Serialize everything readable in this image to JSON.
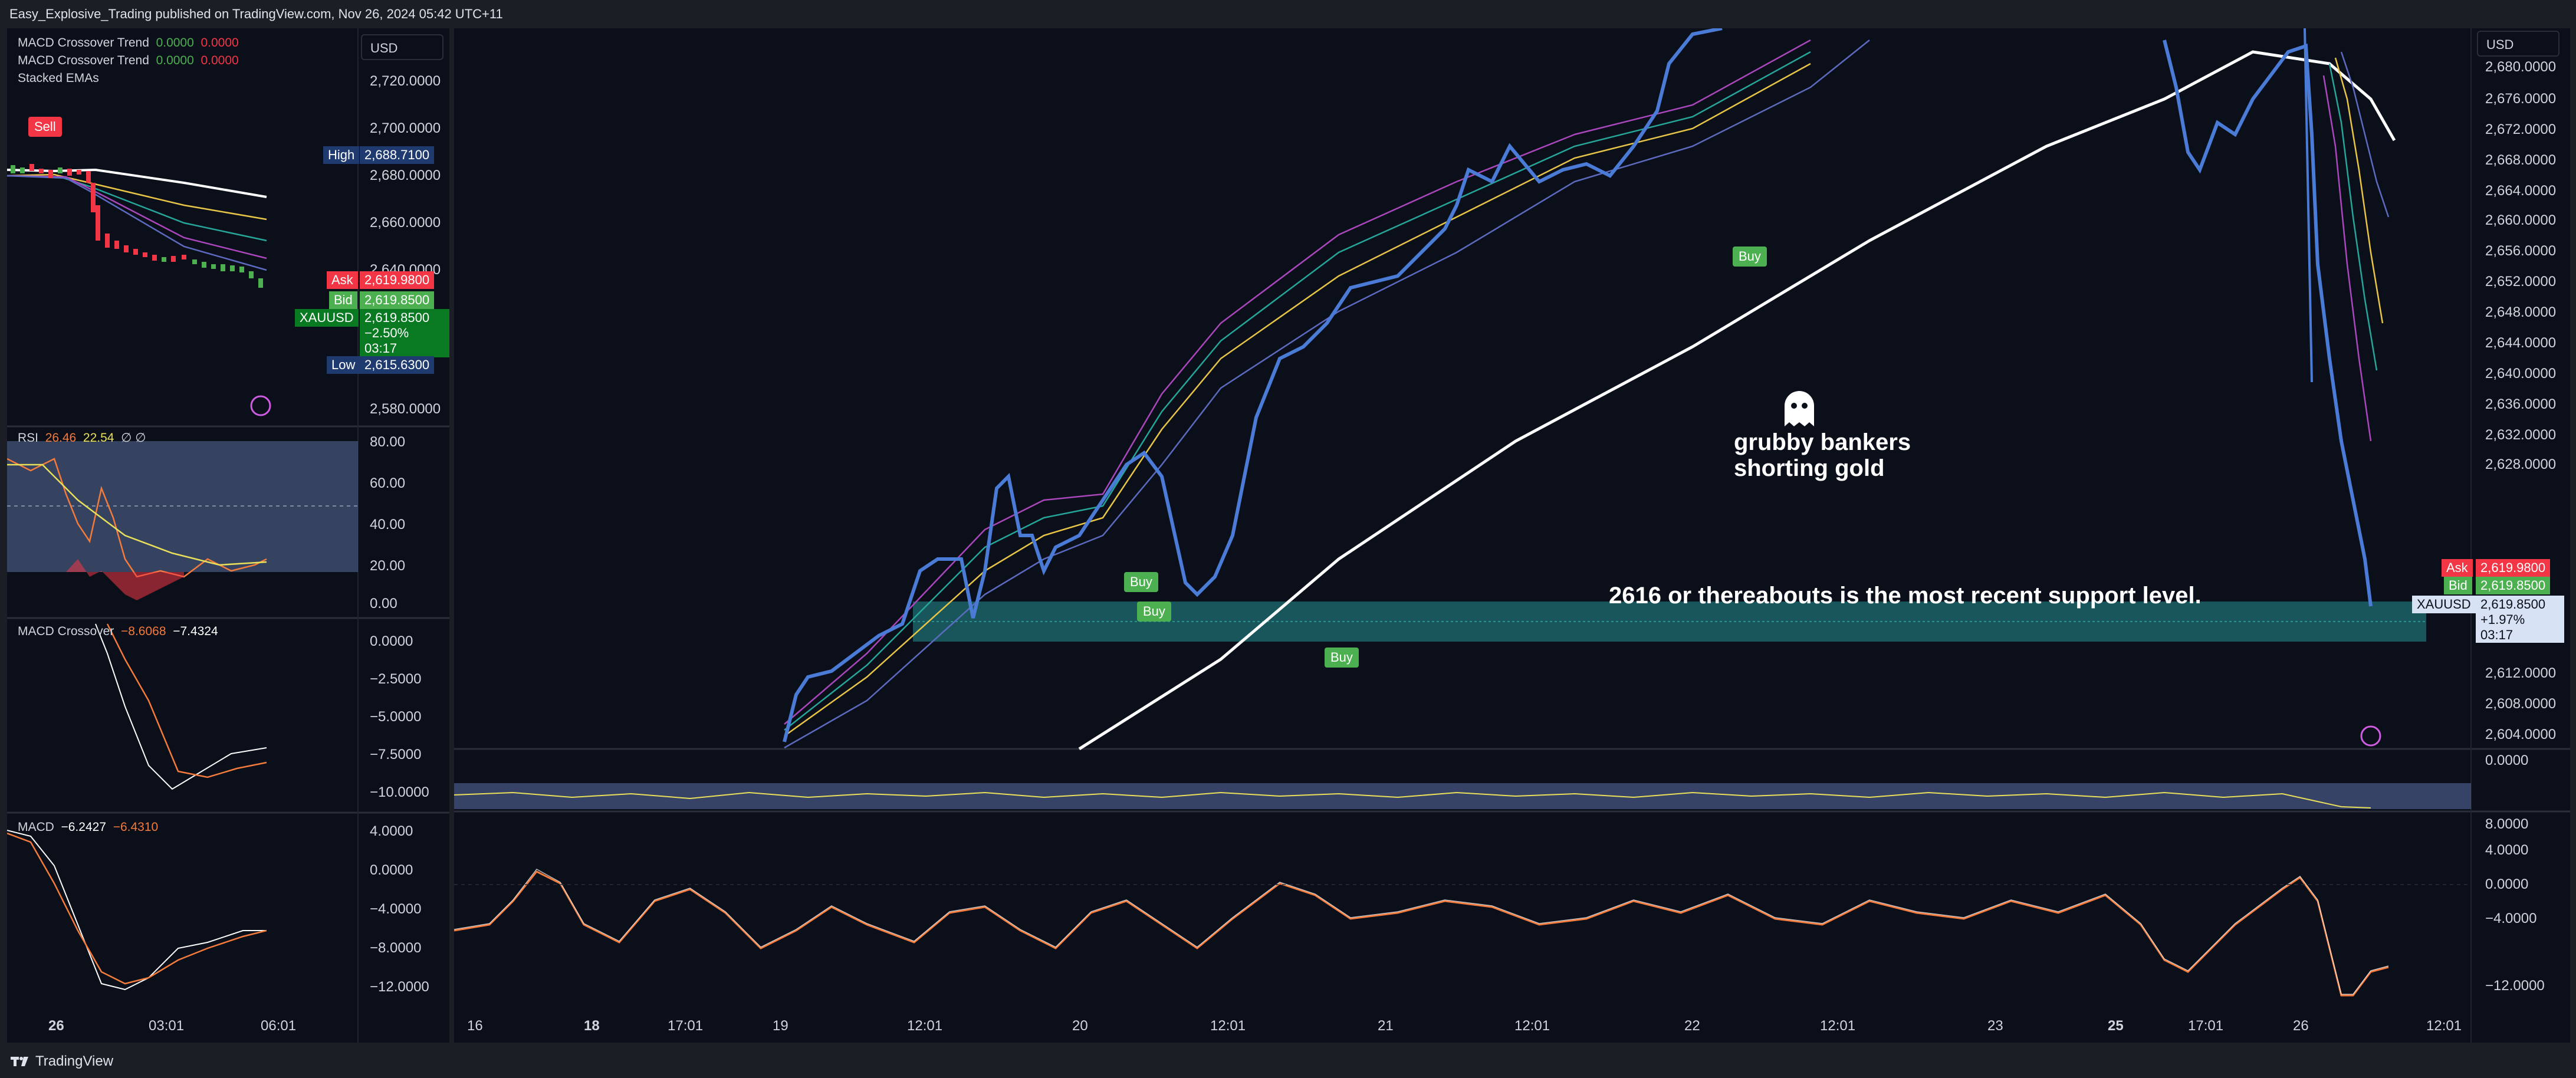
{
  "header": {
    "publisher": "Easy_Explosive_Trading published on TradingView.com, Nov 26, 2024 05:42 UTC+11"
  },
  "footer": {
    "brand": "TradingView"
  },
  "left": {
    "legend": {
      "line1_name": "MACD Crossover Trend",
      "line1_v1": "0.0000",
      "line1_v2": "0.0000",
      "line2_name": "MACD Crossover Trend",
      "line2_v1": "0.0000",
      "line2_v2": "0.0000",
      "line3_name": "Stacked EMAs"
    },
    "currency": "USD",
    "price_ticks": [
      "2,720.0000",
      "2,700.0000",
      "2,680.0000",
      "2,660.0000",
      "2,640.0000",
      "2,580.0000"
    ],
    "high_label": "High",
    "high_value": "2,688.7100",
    "low_label": "Low",
    "low_value": "2,615.6300",
    "ask_label": "Ask",
    "ask_value": "2,619.9800",
    "bid_label": "Bid",
    "bid_value": "2,619.8500",
    "symbol": "XAUUSD",
    "last_value": "2,619.8500",
    "change": "−2.50%",
    "countdown": "03:17",
    "sell_label": "Sell",
    "rsi": {
      "name": "RSI",
      "v1": "26.46",
      "v2": "22.54",
      "icons": "∅ ∅",
      "ticks": [
        "80.00",
        "60.00",
        "40.00",
        "20.00",
        "0.00"
      ]
    },
    "macd_cross": {
      "name": "MACD Crossover",
      "v1": "−8.6068",
      "v2": "−7.4324",
      "ticks": [
        "0.0000",
        "−2.5000",
        "−5.0000",
        "−7.5000",
        "−10.0000"
      ]
    },
    "macd": {
      "name": "MACD",
      "v1": "−6.2427",
      "v2": "−6.4310",
      "ticks": [
        "4.0000",
        "0.0000",
        "−4.0000",
        "−8.0000",
        "−12.0000"
      ]
    },
    "time_labels": [
      "26",
      "03:01",
      "06:01"
    ]
  },
  "right": {
    "currency": "USD",
    "price_ticks": [
      "2,680.0000",
      "2,676.0000",
      "2,672.0000",
      "2,668.0000",
      "2,664.0000",
      "2,660.0000",
      "2,656.0000",
      "2,652.0000",
      "2,648.0000",
      "2,644.0000",
      "2,640.0000",
      "2,636.0000",
      "2,632.0000",
      "2,628.0000",
      "2,612.0000",
      "2,608.0000",
      "2,604.0000"
    ],
    "ask_label": "Ask",
    "ask_value": "2,619.9800",
    "bid_label": "Bid",
    "bid_value": "2,619.8500",
    "symbol": "XAUUSD",
    "last_value": "2,619.8500",
    "change": "+1.97%",
    "countdown": "03:17",
    "annotation_main": "2616 or thereabouts is the most recent support level.",
    "annotation_ghost_1": "grubby bankers",
    "annotation_ghost_2": "shorting gold",
    "buy_label": "Buy",
    "rsi_ticks": [
      "0.0000"
    ],
    "macd_ticks": [
      "8.0000",
      "4.0000",
      "0.0000",
      "−4.0000",
      "−12.0000"
    ],
    "time_labels": [
      "16",
      "18",
      "17:01",
      "19",
      "12:01",
      "20",
      "12:01",
      "21",
      "12:01",
      "22",
      "12:01",
      "23",
      "25",
      "17:01",
      "26",
      "12:01"
    ]
  },
  "colors": {
    "bg": "#0b0f1a",
    "candle_up": "#4a7bd6",
    "ask": "#f23645",
    "bid": "#4caf50",
    "support_zone": "#1b5e63",
    "ema_white": "#ffffff"
  }
}
